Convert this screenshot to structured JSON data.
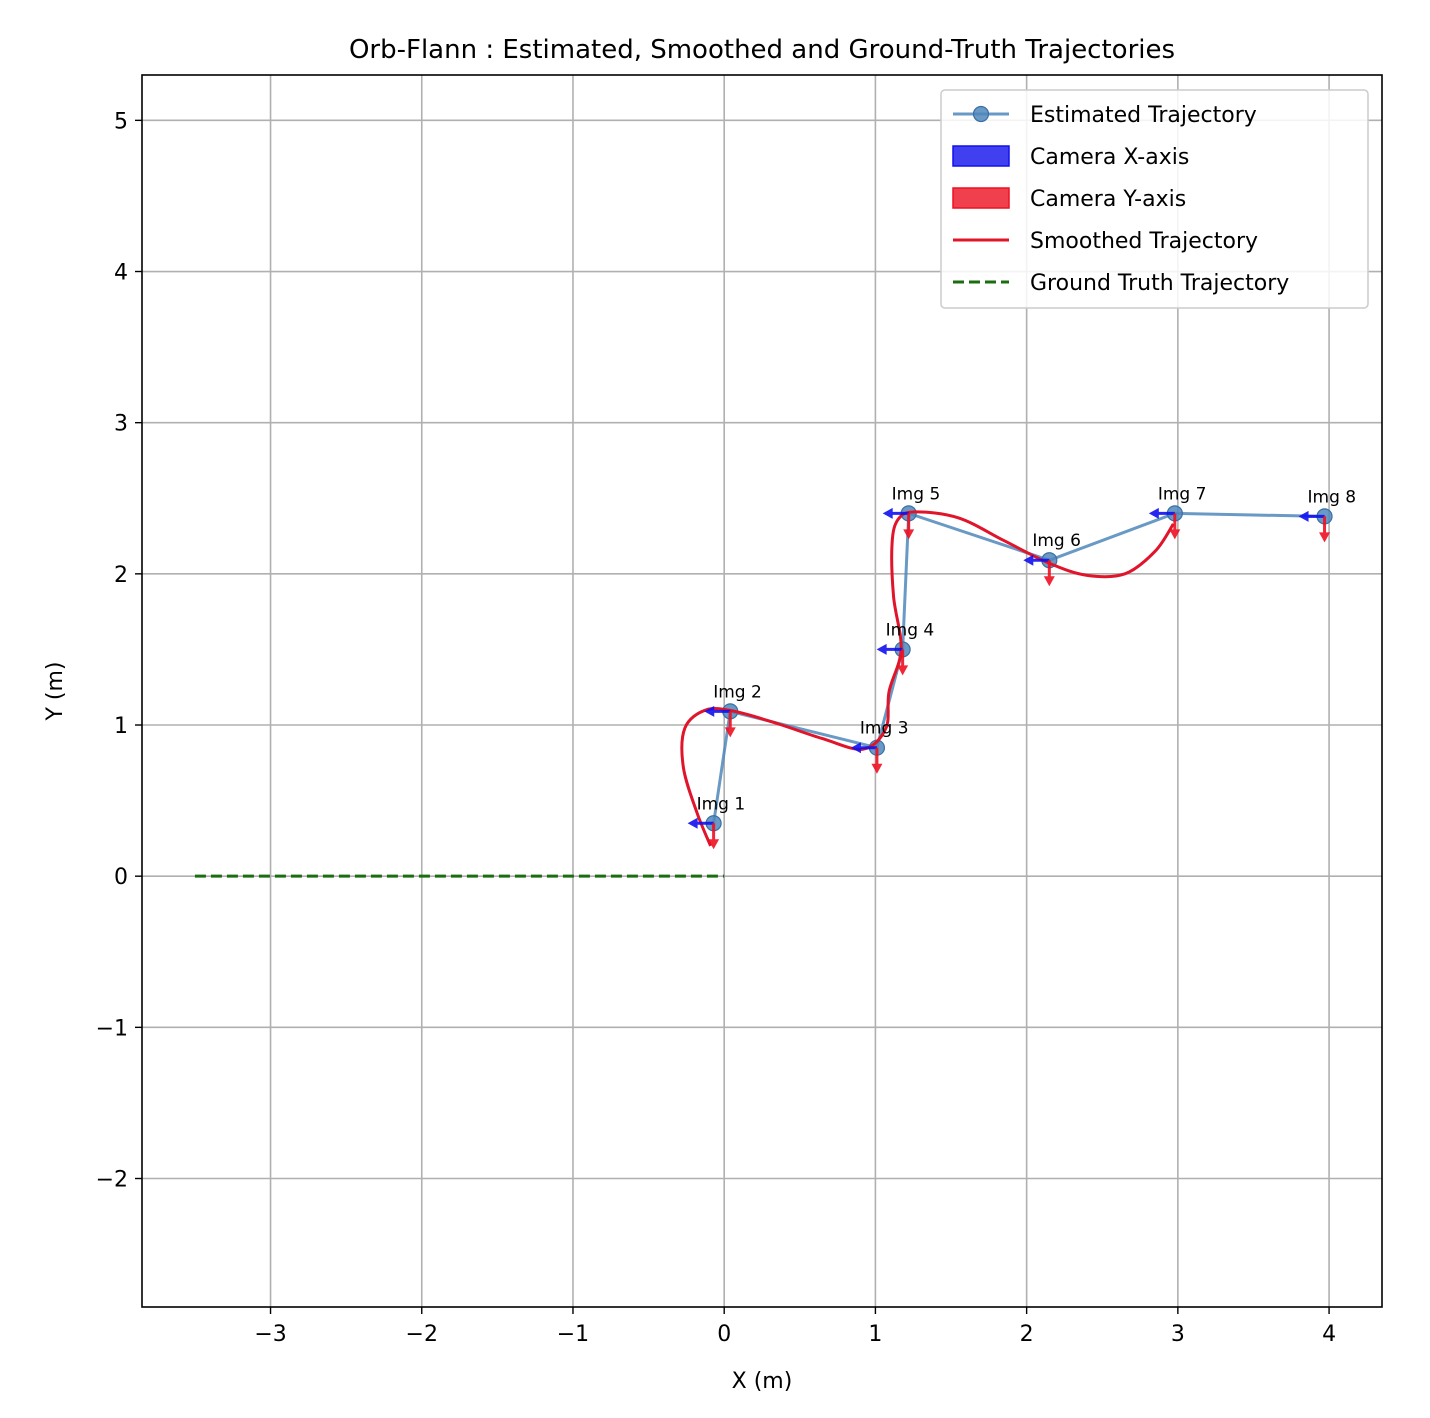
{
  "chart_data": {
    "type": "line",
    "title": "Orb-Flann : Estimated, Smoothed and Ground-Truth Trajectories",
    "xlabel": "X (m)",
    "ylabel": "Y (m)",
    "xlim": [
      -3.85,
      4.35
    ],
    "ylim": [
      -2.85,
      5.3
    ],
    "xticks": [
      -3,
      -2,
      -1,
      0,
      1,
      2,
      3,
      4
    ],
    "yticks": [
      -2,
      -1,
      0,
      1,
      2,
      3,
      4,
      5
    ],
    "xtick_labels": [
      "−3",
      "−2",
      "−1",
      "0",
      "1",
      "2",
      "3",
      "4"
    ],
    "ytick_labels": [
      "−2",
      "−1",
      "0",
      "1",
      "2",
      "3",
      "4",
      "5"
    ],
    "grid": true,
    "legend_position": "top-right",
    "colors": {
      "estimated": "#4f87bb",
      "camera_x": "#1010ee",
      "camera_y": "#ee1020",
      "smoothed": "#e0142a",
      "ground_truth": "#1a6e10",
      "grid": "#b0b0b0"
    },
    "series": [
      {
        "name": "Estimated Trajectory",
        "style": "line-marker",
        "x": [
          -0.07,
          0.04,
          1.01,
          1.18,
          1.22,
          2.15,
          2.98,
          3.97
        ],
        "y": [
          0.35,
          1.09,
          0.85,
          1.5,
          2.4,
          2.09,
          2.4,
          2.38
        ],
        "point_labels": [
          "Img 1",
          "Img 2",
          "Img 3",
          "Img 4",
          "Img 5",
          "Img 6",
          "Img 7",
          "Img 8"
        ]
      },
      {
        "name": "Camera X-axis",
        "style": "arrow",
        "direction": [
          -1,
          0
        ]
      },
      {
        "name": "Camera Y-axis",
        "style": "arrow",
        "direction": [
          0,
          -1
        ]
      },
      {
        "name": "Smoothed Trajectory",
        "style": "line",
        "x": [
          -0.09,
          -0.18,
          -0.27,
          -0.26,
          -0.12,
          0.07,
          0.35,
          0.65,
          0.92,
          1.07,
          1.09,
          1.17,
          1.12,
          1.11,
          1.15,
          1.26,
          1.55,
          1.85,
          2.15,
          2.4,
          2.65,
          2.85,
          2.97
        ],
        "y": [
          0.2,
          0.42,
          0.72,
          0.98,
          1.1,
          1.09,
          1.01,
          0.91,
          0.84,
          0.98,
          1.22,
          1.5,
          1.85,
          2.2,
          2.36,
          2.41,
          2.37,
          2.22,
          2.07,
          1.99,
          2.0,
          2.15,
          2.33
        ]
      },
      {
        "name": "Ground Truth Trajectory",
        "style": "dashed",
        "x": [
          -3.5,
          0.0
        ],
        "y": [
          0.0,
          0.0
        ]
      }
    ]
  }
}
